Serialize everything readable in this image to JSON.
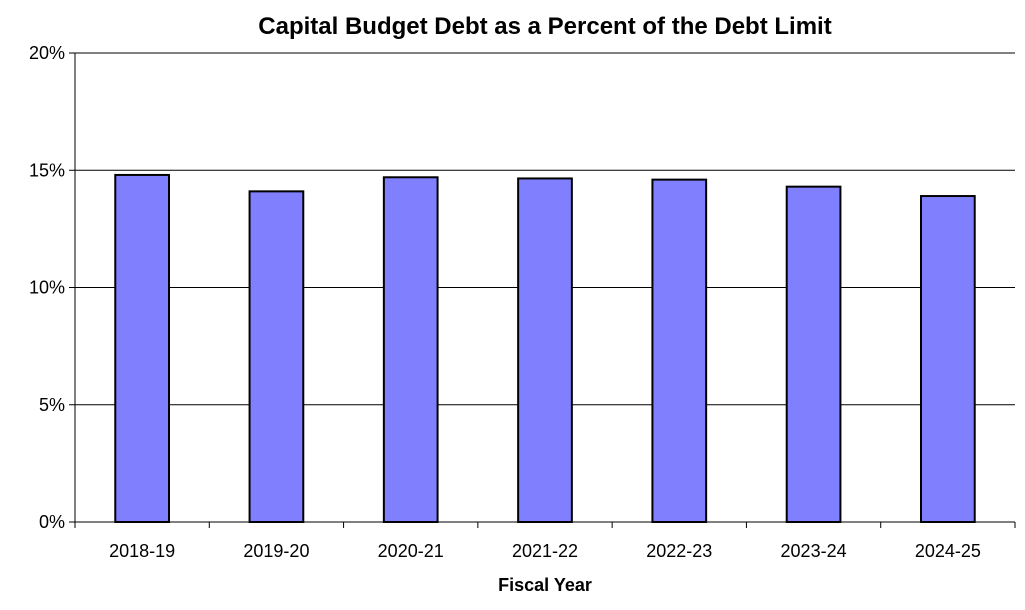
{
  "chart_data": {
    "type": "bar",
    "title": "Capital Budget Debt as a Percent of the Debt Limit",
    "xlabel": "Fiscal Year",
    "ylabel": "",
    "categories": [
      "2018-19",
      "2019-20",
      "2020-21",
      "2021-22",
      "2022-23",
      "2023-24",
      "2024-25"
    ],
    "values": [
      14.8,
      14.1,
      14.7,
      14.65,
      14.6,
      14.3,
      13.9
    ],
    "ylim": [
      0,
      20
    ],
    "yticks": [
      0,
      5,
      10,
      15,
      20
    ],
    "ytick_labels": [
      "0%",
      "5%",
      "10%",
      "15%",
      "20%"
    ],
    "grid": true,
    "legend": false,
    "colors": {
      "bar_fill": "#8080ff",
      "bar_stroke": "#000000",
      "gridline": "#000000",
      "axis": "#000000",
      "text": "#000000"
    }
  }
}
